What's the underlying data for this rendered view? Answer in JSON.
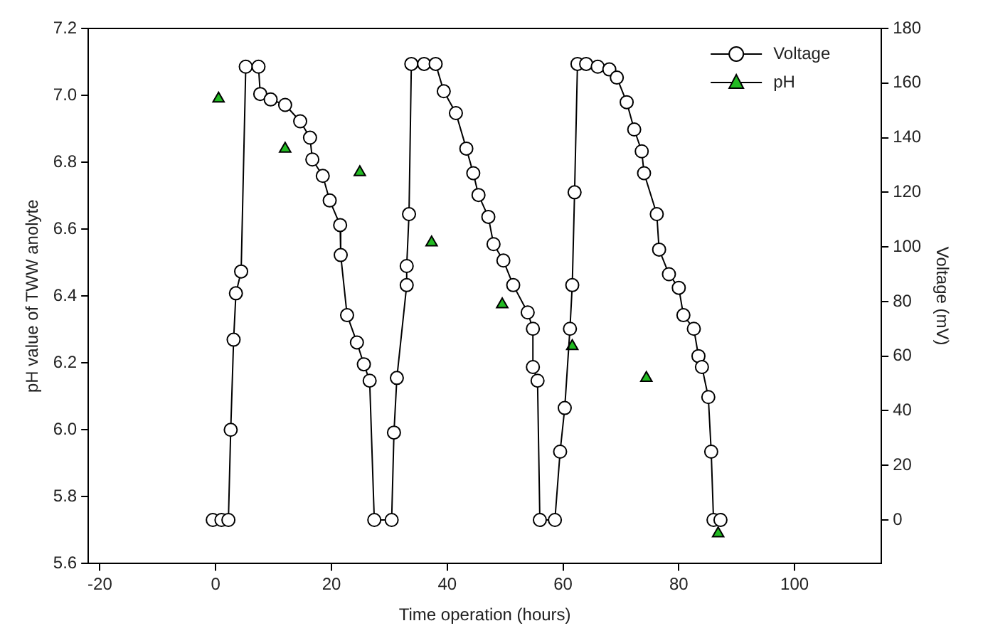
{
  "chart_data": {
    "type": "line",
    "xlabel": "Time operation (hours)",
    "ylabel": "pH value of TWW anolyte",
    "y2label": "Voltage (mV)",
    "xlim": [
      -22,
      115
    ],
    "xticks": [
      -20,
      0,
      20,
      40,
      60,
      80,
      100
    ],
    "ylim": [
      5.6,
      7.2
    ],
    "yticks": [
      5.6,
      5.8,
      {
        "value": 6,
        "label": "6.0"
      },
      6.2,
      6.4,
      6.6,
      6.8,
      {
        "value": 7,
        "label": "7.0"
      },
      7.2
    ],
    "y2lim": [
      -16,
      180
    ],
    "y2ticks": [
      0,
      20,
      40,
      60,
      80,
      100,
      120,
      140,
      160,
      180
    ],
    "grid": false,
    "legend": "top right",
    "series": [
      {
        "name": "Voltage",
        "type": "line",
        "axis": "y2",
        "color": "#000000",
        "marker": "circle",
        "line_style": "solid",
        "x": [
          -0.5,
          1,
          2.2,
          2.6,
          3.1,
          3.5,
          4.4,
          5.2,
          7.4,
          7.7,
          9.5,
          12,
          14.6,
          16.3,
          16.7,
          18.5,
          19.7,
          21.5,
          21.6,
          22.7,
          24.4,
          25.6,
          26.6,
          27.4,
          30.4,
          30.8,
          31.3,
          33,
          33,
          33.4,
          33.8,
          36,
          38,
          39.4,
          41.5,
          43.3,
          44.5,
          45.4,
          47.1,
          48,
          49.7,
          51.4,
          53.9,
          54.8,
          54.8,
          55.6,
          56,
          58.6,
          59.5,
          60.3,
          61.2,
          61.6,
          62,
          62.5,
          64,
          66,
          68,
          69.3,
          71,
          72.3,
          73.6,
          74,
          76.2,
          76.6,
          78.3,
          80,
          80.8,
          82.6,
          83.4,
          84,
          85.1,
          85.6,
          86,
          87.2
        ],
        "values": [
          0,
          0,
          0,
          33,
          66,
          83,
          91,
          166,
          166,
          156,
          154,
          152,
          146,
          140,
          132,
          126,
          117,
          108,
          97,
          75,
          65,
          57,
          51,
          0,
          0,
          32,
          52,
          86,
          93,
          112,
          167,
          167,
          167,
          157,
          149,
          136,
          127,
          119,
          111,
          101,
          95,
          86,
          76,
          70,
          56,
          51,
          0,
          0,
          25,
          41,
          70,
          86,
          120,
          167,
          167,
          166,
          165,
          162,
          153,
          143,
          135,
          127,
          112,
          99,
          90,
          85,
          75,
          70,
          60,
          56,
          45,
          25,
          0,
          0
        ]
      },
      {
        "name": "pH",
        "type": "scatter",
        "axis": "y",
        "color": "#22bb22",
        "marker": "triangle",
        "x": [
          0.5,
          12,
          24.9,
          37.3,
          49.5,
          61.6,
          74.4,
          86.8
        ],
        "values": [
          6.99,
          6.84,
          6.77,
          6.56,
          6.375,
          6.25,
          6.155,
          5.69
        ]
      }
    ]
  }
}
